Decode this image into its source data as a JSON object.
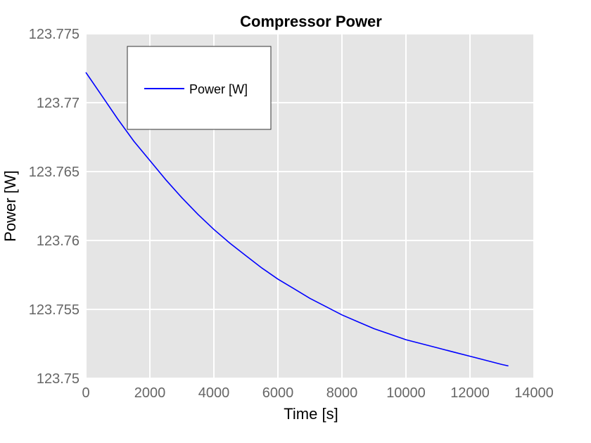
{
  "chart_data": {
    "type": "line",
    "title": "Compressor Power",
    "xlabel": "Time [s]",
    "ylabel": "Power [W]",
    "xlim": [
      0,
      14000
    ],
    "ylim": [
      123.75,
      123.775
    ],
    "x_ticks": [
      0,
      2000,
      4000,
      6000,
      8000,
      10000,
      12000,
      14000
    ],
    "x_tick_labels": [
      "0",
      "2000",
      "4000",
      "6000",
      "8000",
      "10000",
      "12000",
      "14000"
    ],
    "y_ticks": [
      123.75,
      123.755,
      123.76,
      123.765,
      123.77,
      123.775
    ],
    "y_tick_labels": [
      "123.75",
      "123.755",
      "123.76",
      "123.765",
      "123.77",
      "123.775"
    ],
    "grid": true,
    "legend_position": "top-left",
    "series": [
      {
        "name": "Power [W]",
        "color": "#0000ff",
        "x": [
          0,
          500,
          1000,
          1500,
          2000,
          2500,
          3000,
          3500,
          4000,
          4500,
          5000,
          5500,
          6000,
          6500,
          7000,
          7500,
          8000,
          8500,
          9000,
          9500,
          10000,
          10500,
          11000,
          11500,
          12000,
          12500,
          13000,
          13200
        ],
        "y": [
          123.7722,
          123.7705,
          123.7688,
          123.7672,
          123.7658,
          123.7644,
          123.7631,
          123.7619,
          123.7608,
          123.7598,
          123.7589,
          123.758,
          123.7572,
          123.7565,
          123.7558,
          123.7552,
          123.7546,
          123.7541,
          123.7536,
          123.7532,
          123.7528,
          123.7525,
          123.7522,
          123.7519,
          123.7516,
          123.7513,
          123.751,
          123.7509
        ]
      }
    ]
  }
}
